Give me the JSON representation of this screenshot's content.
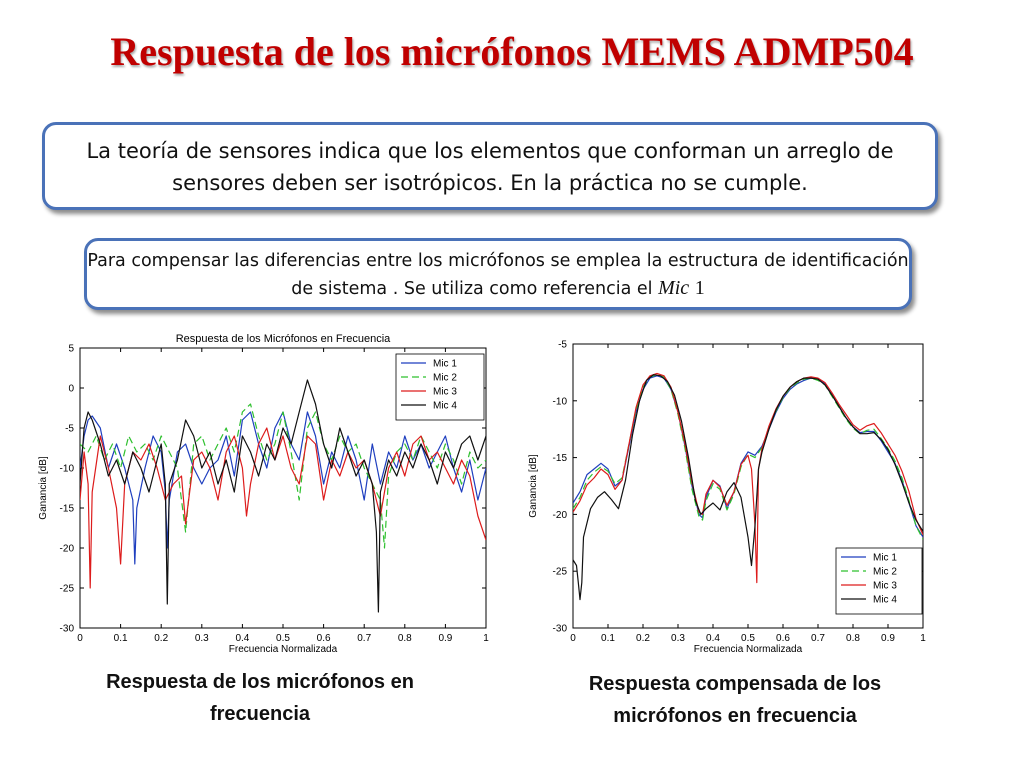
{
  "slide": {
    "title": "Respuesta de los micrófonos MEMS ADMP504",
    "box1_text": "La teoría de sensores indica que los elementos que conforman un arreglo de sensores deben ser isotrópicos. En la práctica no se cumple.",
    "box2_text": "Para compensar las diferencias entre los micrófonos se emplea la estructura de identificación de sistema . Se utiliza como referencia el",
    "box2_math_var": "Mic",
    "box2_math_num": "1",
    "caption_left": "Respuesta de los micrófonos en frecuencia",
    "caption_right": "Respuesta compensada de los micrófonos en frecuencia"
  },
  "chart_data": [
    {
      "type": "line",
      "title": "Respuesta de los Micrófonos en Frecuencia",
      "xlabel": "Frecuencia Normalizada",
      "ylabel": "Ganancia [dB]",
      "xlim": [
        0,
        1
      ],
      "ylim": [
        -30,
        5
      ],
      "xticks": [
        "0",
        "0.1",
        "0.2",
        "0.3",
        "0.4",
        "0.5",
        "0.6",
        "0.7",
        "0.8",
        "0.9",
        "1"
      ],
      "yticks": [
        "5",
        "0",
        "-5",
        "-10",
        "-15",
        "-20",
        "-25",
        "-30"
      ],
      "legend_position": "top-right",
      "grid": false,
      "series": [
        {
          "name": "Mic 1",
          "color": "#1f3fbf",
          "dash": "",
          "x": [
            0,
            0.01,
            0.02,
            0.03,
            0.05,
            0.07,
            0.09,
            0.11,
            0.13,
            0.135,
            0.14,
            0.16,
            0.18,
            0.2,
            0.21,
            0.215,
            0.22,
            0.24,
            0.26,
            0.28,
            0.3,
            0.32,
            0.34,
            0.36,
            0.38,
            0.4,
            0.42,
            0.44,
            0.46,
            0.48,
            0.5,
            0.52,
            0.54,
            0.56,
            0.58,
            0.6,
            0.62,
            0.64,
            0.66,
            0.68,
            0.7,
            0.72,
            0.74,
            0.76,
            0.78,
            0.8,
            0.82,
            0.84,
            0.86,
            0.88,
            0.9,
            0.92,
            0.94,
            0.96,
            0.98,
            1
          ],
          "y": [
            -10,
            -6,
            -4,
            -3.5,
            -5,
            -10,
            -7,
            -10,
            -14,
            -22,
            -15,
            -10,
            -6,
            -8,
            -13,
            -20,
            -14,
            -8,
            -7,
            -10,
            -12,
            -10,
            -9,
            -6,
            -11,
            -4,
            -3,
            -7,
            -10,
            -5,
            -3,
            -7,
            -9,
            -3,
            -6,
            -12,
            -8,
            -10,
            -6,
            -9,
            -14,
            -7,
            -12,
            -8,
            -10,
            -6,
            -9,
            -7,
            -10,
            -8,
            -6,
            -10,
            -13,
            -9,
            -14,
            -10
          ]
        },
        {
          "name": "Mic 2",
          "color": "#2ec02e",
          "dash": "7,4",
          "x": [
            0,
            0.02,
            0.04,
            0.06,
            0.08,
            0.1,
            0.12,
            0.14,
            0.16,
            0.18,
            0.2,
            0.22,
            0.24,
            0.26,
            0.28,
            0.3,
            0.32,
            0.34,
            0.36,
            0.38,
            0.4,
            0.42,
            0.44,
            0.46,
            0.48,
            0.5,
            0.52,
            0.54,
            0.56,
            0.58,
            0.6,
            0.62,
            0.64,
            0.66,
            0.68,
            0.7,
            0.72,
            0.74,
            0.75,
            0.76,
            0.78,
            0.8,
            0.82,
            0.84,
            0.86,
            0.88,
            0.9,
            0.92,
            0.94,
            0.96,
            0.98,
            1
          ],
          "y": [
            -7,
            -8,
            -6,
            -9,
            -7,
            -10,
            -6,
            -8,
            -7,
            -9,
            -6,
            -8,
            -10,
            -18,
            -7,
            -6,
            -9,
            -7,
            -5,
            -8,
            -3,
            -2,
            -6,
            -9,
            -7,
            -3,
            -8,
            -14,
            -5,
            -3,
            -7,
            -9,
            -6,
            -8,
            -7,
            -10,
            -12,
            -14,
            -20,
            -11,
            -8,
            -7,
            -9,
            -6,
            -8,
            -10,
            -7,
            -9,
            -12,
            -8,
            -10,
            -9
          ]
        },
        {
          "name": "Mic 3",
          "color": "#dd1c1c",
          "dash": "",
          "x": [
            0,
            0.01,
            0.02,
            0.025,
            0.03,
            0.05,
            0.07,
            0.09,
            0.1,
            0.11,
            0.13,
            0.15,
            0.17,
            0.19,
            0.21,
            0.23,
            0.25,
            0.26,
            0.28,
            0.3,
            0.32,
            0.34,
            0.36,
            0.38,
            0.4,
            0.41,
            0.42,
            0.44,
            0.46,
            0.48,
            0.5,
            0.52,
            0.54,
            0.56,
            0.58,
            0.6,
            0.62,
            0.64,
            0.66,
            0.68,
            0.7,
            0.72,
            0.74,
            0.76,
            0.78,
            0.8,
            0.82,
            0.84,
            0.86,
            0.88,
            0.9,
            0.92,
            0.94,
            0.96,
            0.98,
            1
          ],
          "y": [
            -14,
            -8,
            -12,
            -25,
            -13,
            -6,
            -10,
            -15,
            -22,
            -12,
            -8,
            -9,
            -7,
            -10,
            -14,
            -12,
            -11,
            -17,
            -9,
            -8,
            -10,
            -14,
            -8,
            -6,
            -10,
            -16,
            -12,
            -7,
            -5,
            -9,
            -6,
            -10,
            -12,
            -6,
            -7,
            -14,
            -9,
            -11,
            -8,
            -10,
            -9,
            -12,
            -16,
            -10,
            -8,
            -11,
            -7,
            -6,
            -9,
            -8,
            -10,
            -12,
            -9,
            -11,
            -16,
            -19
          ]
        },
        {
          "name": "Mic 4",
          "color": "#111111",
          "dash": "",
          "x": [
            0,
            0.01,
            0.02,
            0.03,
            0.05,
            0.07,
            0.09,
            0.11,
            0.13,
            0.15,
            0.17,
            0.19,
            0.2,
            0.21,
            0.215,
            0.22,
            0.24,
            0.26,
            0.28,
            0.3,
            0.32,
            0.34,
            0.36,
            0.38,
            0.4,
            0.42,
            0.44,
            0.46,
            0.48,
            0.5,
            0.52,
            0.54,
            0.56,
            0.58,
            0.6,
            0.62,
            0.64,
            0.66,
            0.68,
            0.7,
            0.72,
            0.73,
            0.735,
            0.74,
            0.76,
            0.78,
            0.8,
            0.82,
            0.84,
            0.86,
            0.88,
            0.9,
            0.92,
            0.94,
            0.96,
            0.98,
            1
          ],
          "y": [
            -12,
            -5,
            -3,
            -4,
            -7,
            -11,
            -9,
            -12,
            -8,
            -10,
            -13,
            -9,
            -7,
            -12,
            -27,
            -12,
            -9,
            -4,
            -6,
            -10,
            -8,
            -12,
            -9,
            -13,
            -6,
            -8,
            -11,
            -7,
            -9,
            -5,
            -7,
            -3,
            1,
            -2,
            -7,
            -10,
            -5,
            -8,
            -11,
            -9,
            -12,
            -18,
            -28,
            -13,
            -9,
            -11,
            -8,
            -10,
            -7,
            -9,
            -12,
            -8,
            -10,
            -7,
            -6,
            -9,
            -6
          ]
        }
      ]
    },
    {
      "type": "line",
      "title": "",
      "xlabel": "Frecuencia Normalizada",
      "ylabel": "Ganancia [dB]",
      "xlim": [
        0,
        1
      ],
      "ylim": [
        -30,
        -5
      ],
      "xticks": [
        "0",
        "0.1",
        "0.2",
        "0.3",
        "0.4",
        "0.5",
        "0.6",
        "0.7",
        "0.8",
        "0.9",
        "1"
      ],
      "yticks": [
        "-5",
        "-10",
        "-15",
        "-20",
        "-25",
        "-30"
      ],
      "legend_position": "bottom-right",
      "grid": false,
      "series": [
        {
          "name": "Mic 1",
          "color": "#1f3fbf",
          "dash": "",
          "x": [
            0,
            0.02,
            0.04,
            0.06,
            0.08,
            0.1,
            0.12,
            0.14,
            0.16,
            0.18,
            0.2,
            0.22,
            0.24,
            0.26,
            0.28,
            0.3,
            0.32,
            0.34,
            0.36,
            0.37,
            0.38,
            0.4,
            0.42,
            0.44,
            0.46,
            0.48,
            0.5,
            0.52,
            0.54,
            0.56,
            0.58,
            0.6,
            0.62,
            0.64,
            0.66,
            0.68,
            0.7,
            0.72,
            0.74,
            0.76,
            0.78,
            0.8,
            0.82,
            0.84,
            0.86,
            0.88,
            0.9,
            0.92,
            0.94,
            0.96,
            0.98,
            1
          ],
          "y": [
            -19,
            -18,
            -16.5,
            -16,
            -15.5,
            -16,
            -17.5,
            -17,
            -14,
            -11,
            -9,
            -8,
            -7.8,
            -8,
            -9,
            -11,
            -14,
            -17.5,
            -20,
            -20.3,
            -18.5,
            -17,
            -17.5,
            -19.5,
            -18,
            -15.5,
            -14.5,
            -14.8,
            -14,
            -12.5,
            -11,
            -9.8,
            -9,
            -8.5,
            -8.2,
            -8,
            -8.1,
            -8.5,
            -9.5,
            -10.5,
            -11.5,
            -12.3,
            -12.8,
            -12.7,
            -12.7,
            -13.5,
            -14.5,
            -15.5,
            -17,
            -19,
            -21,
            -22
          ]
        },
        {
          "name": "Mic 2",
          "color": "#2ec02e",
          "dash": "7,4",
          "x": [
            0,
            0.02,
            0.04,
            0.06,
            0.08,
            0.1,
            0.12,
            0.14,
            0.16,
            0.18,
            0.2,
            0.22,
            0.24,
            0.26,
            0.28,
            0.3,
            0.32,
            0.34,
            0.36,
            0.37,
            0.38,
            0.4,
            0.42,
            0.44,
            0.46,
            0.48,
            0.5,
            0.52,
            0.54,
            0.56,
            0.58,
            0.6,
            0.62,
            0.64,
            0.66,
            0.68,
            0.7,
            0.72,
            0.74,
            0.76,
            0.78,
            0.8,
            0.82,
            0.84,
            0.86,
            0.88,
            0.9,
            0.92,
            0.94,
            0.96,
            0.98,
            1
          ],
          "y": [
            -19.5,
            -18.5,
            -17,
            -16.3,
            -15.8,
            -16.2,
            -17.3,
            -16.8,
            -13.8,
            -10.8,
            -8.8,
            -7.9,
            -7.7,
            -7.9,
            -9,
            -11.2,
            -14.2,
            -17.8,
            -20.2,
            -20.5,
            -18.8,
            -17.3,
            -17.8,
            -19.6,
            -18.2,
            -15.8,
            -14.7,
            -15,
            -14.1,
            -12.4,
            -10.9,
            -9.7,
            -8.9,
            -8.4,
            -8.1,
            -8,
            -8.2,
            -8.6,
            -9.6,
            -10.6,
            -11.6,
            -12.4,
            -12.9,
            -12.6,
            -12.5,
            -13.3,
            -14.2,
            -15.3,
            -16.8,
            -18.8,
            -21,
            -22.2
          ]
        },
        {
          "name": "Mic 3",
          "color": "#dd1c1c",
          "dash": "",
          "x": [
            0,
            0.02,
            0.04,
            0.06,
            0.08,
            0.1,
            0.12,
            0.14,
            0.16,
            0.18,
            0.2,
            0.22,
            0.24,
            0.26,
            0.28,
            0.3,
            0.32,
            0.34,
            0.36,
            0.37,
            0.38,
            0.4,
            0.42,
            0.44,
            0.46,
            0.48,
            0.5,
            0.51,
            0.52,
            0.525,
            0.53,
            0.54,
            0.56,
            0.58,
            0.6,
            0.62,
            0.64,
            0.66,
            0.68,
            0.7,
            0.72,
            0.74,
            0.76,
            0.78,
            0.8,
            0.82,
            0.84,
            0.86,
            0.88,
            0.9,
            0.92,
            0.94,
            0.96,
            0.98,
            1
          ],
          "y": [
            -19.8,
            -18.8,
            -17.4,
            -16.8,
            -16,
            -16.5,
            -17.8,
            -17,
            -13.8,
            -10.6,
            -8.6,
            -7.8,
            -7.6,
            -7.8,
            -8.8,
            -11,
            -13.8,
            -17.2,
            -19.8,
            -20,
            -18.2,
            -17,
            -17.6,
            -19.2,
            -18,
            -15.6,
            -14.8,
            -16,
            -21,
            -26,
            -16,
            -14.2,
            -12.2,
            -10.7,
            -9.6,
            -8.8,
            -8.3,
            -8,
            -7.9,
            -8,
            -8.4,
            -9.3,
            -10.3,
            -11.2,
            -12.1,
            -12.6,
            -12.2,
            -12,
            -12.8,
            -13.8,
            -14.8,
            -16.2,
            -18,
            -20.4,
            -21.8
          ]
        },
        {
          "name": "Mic 4",
          "color": "#111111",
          "dash": "",
          "x": [
            0,
            0.01,
            0.015,
            0.02,
            0.025,
            0.03,
            0.05,
            0.07,
            0.09,
            0.11,
            0.13,
            0.15,
            0.17,
            0.19,
            0.21,
            0.23,
            0.25,
            0.27,
            0.29,
            0.31,
            0.33,
            0.35,
            0.365,
            0.38,
            0.4,
            0.42,
            0.44,
            0.46,
            0.48,
            0.5,
            0.51,
            0.52,
            0.53,
            0.54,
            0.56,
            0.58,
            0.6,
            0.62,
            0.64,
            0.66,
            0.68,
            0.7,
            0.72,
            0.74,
            0.76,
            0.78,
            0.8,
            0.82,
            0.84,
            0.86,
            0.88,
            0.9,
            0.92,
            0.94,
            0.96,
            0.98,
            1
          ],
          "y": [
            -24,
            -24.5,
            -26,
            -27.5,
            -26,
            -22,
            -19.5,
            -18.5,
            -18,
            -18.7,
            -19.5,
            -17,
            -13,
            -10,
            -8.2,
            -7.7,
            -7.8,
            -8.3,
            -9.5,
            -11.8,
            -15,
            -18.8,
            -20,
            -19.5,
            -19,
            -19.6,
            -18,
            -17.2,
            -18.5,
            -22,
            -24.5,
            -21,
            -16,
            -14.5,
            -12.5,
            -10.8,
            -9.6,
            -8.8,
            -8.3,
            -8,
            -8,
            -8.1,
            -8.6,
            -9.5,
            -10.5,
            -11.5,
            -12.3,
            -12.9,
            -12.9,
            -12.8,
            -13.4,
            -14.3,
            -15.6,
            -17.2,
            -19,
            -20.5,
            -21.5
          ]
        }
      ]
    }
  ]
}
